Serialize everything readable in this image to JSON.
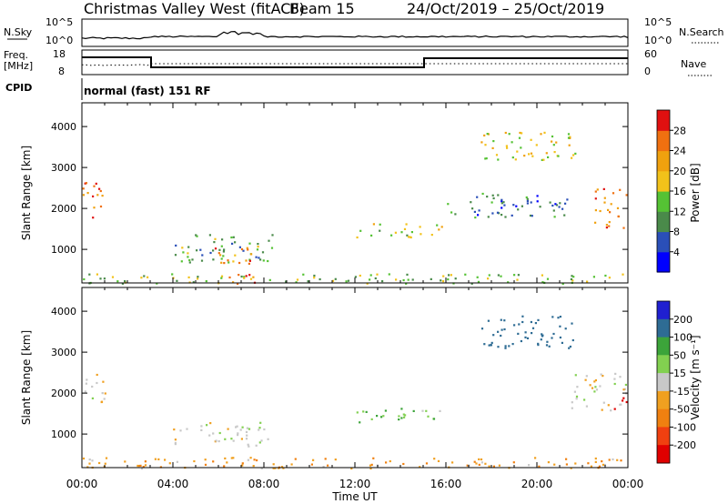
{
  "header": {
    "station": "Christmas Valley West (fitACF)",
    "beam": "Beam 15",
    "dates": "24/Oct/2019 – 25/Oct/2019"
  },
  "nsky_panel": {
    "label_left": "N.Sky",
    "label_right": "N.Search",
    "tick_hi_left": "10^5",
    "tick_lo_left": "10^0",
    "tick_hi_right": "10^5",
    "tick_lo_right": "10^0"
  },
  "freq_panel": {
    "label_left_1": "Freq.",
    "label_left_2": "[MHz]",
    "label_right": "Nave",
    "tick_hi_left": "18",
    "tick_lo_left": "8",
    "tick_hi_right": "60",
    "tick_lo_right": "0"
  },
  "cpid_panel": {
    "label": "CPID",
    "mode": "normal (fast) 151 RF"
  },
  "colors": {
    "power": [
      "#0000ff",
      "#2a4fb8",
      "#4a8a4a",
      "#55c234",
      "#f2c21a",
      "#f0a10e",
      "#f07010",
      "#e01010"
    ],
    "velocity": [
      "#2020d0",
      "#2e6c94",
      "#3ca43a",
      "#82d050",
      "#c8c8c8",
      "#f0a020",
      "#f08010",
      "#f04010",
      "#e00000"
    ]
  },
  "chart_data": [
    {
      "type": "heatmap",
      "name": "power",
      "xlabel": "Time UT",
      "ylabel": "Slant Range [km]",
      "yticks": [
        "1000",
        "2000",
        "3000",
        "4000"
      ],
      "ylim": [
        180,
        4580
      ],
      "xlim": [
        0,
        24
      ],
      "colorbar_label": "Power [dB]",
      "colorbar_ticks": [
        "4",
        "8",
        "12",
        "16",
        "20",
        "24",
        "28"
      ],
      "colorbar_range": [
        0,
        32
      ],
      "echo_regions": [
        {
          "t0": 0.0,
          "t1": 1.0,
          "r0": 1750,
          "r1": 2650,
          "level": 26
        },
        {
          "t0": 4.0,
          "t1": 8.5,
          "r0": 700,
          "r1": 1400,
          "level": 12
        },
        {
          "t0": 5.8,
          "t1": 7.6,
          "r0": 600,
          "r1": 1100,
          "level": 24
        },
        {
          "t0": 0.0,
          "t1": 24.0,
          "r0": 180,
          "r1": 420,
          "level": 14
        },
        {
          "t0": 6.0,
          "t1": 8.0,
          "r0": 180,
          "r1": 420,
          "level": 28
        },
        {
          "t0": 12.0,
          "t1": 15.8,
          "r0": 1300,
          "r1": 1650,
          "level": 16
        },
        {
          "t0": 16.0,
          "t1": 21.5,
          "r0": 1800,
          "r1": 2400,
          "level": 8
        },
        {
          "t0": 17.5,
          "t1": 21.8,
          "r0": 3200,
          "r1": 3900,
          "level": 18
        },
        {
          "t0": 22.5,
          "t1": 24.0,
          "r0": 1500,
          "r1": 2500,
          "level": 24
        }
      ]
    },
    {
      "type": "heatmap",
      "name": "velocity",
      "xlabel": "Time UT",
      "ylabel": "Slant Range [km]",
      "yticks": [
        "1000",
        "2000",
        "3000",
        "4000"
      ],
      "ylim": [
        180,
        4580
      ],
      "xlim": [
        0,
        24
      ],
      "xticks": [
        "00:00",
        "04:00",
        "08:00",
        "12:00",
        "16:00",
        "20:00",
        "00:00"
      ],
      "colorbar_label": "Velocity [m s⁻¹]",
      "colorbar_ticks": [
        "200",
        "100",
        "50",
        "15",
        "-15",
        "-50",
        "-100",
        "-200"
      ],
      "colorbar_range": [
        -250,
        250
      ],
      "echo_regions": [
        {
          "t0": 0.0,
          "t1": 1.0,
          "r0": 1750,
          "r1": 2500,
          "level": 0
        },
        {
          "t0": 4.0,
          "t1": 8.2,
          "r0": 700,
          "r1": 1300,
          "level": 0
        },
        {
          "t0": 0.0,
          "t1": 24.0,
          "r0": 180,
          "r1": 450,
          "level": -40
        },
        {
          "t0": 12.0,
          "t1": 16.0,
          "r0": 1300,
          "r1": 1650,
          "level": 40
        },
        {
          "t0": 17.5,
          "t1": 21.6,
          "r0": 3100,
          "r1": 3900,
          "level": 150
        },
        {
          "t0": 21.5,
          "t1": 24.0,
          "r0": 1600,
          "r1": 2500,
          "level": 0
        },
        {
          "t0": 23.3,
          "t1": 24.0,
          "r0": 1550,
          "r1": 1900,
          "level": -200
        }
      ]
    }
  ]
}
